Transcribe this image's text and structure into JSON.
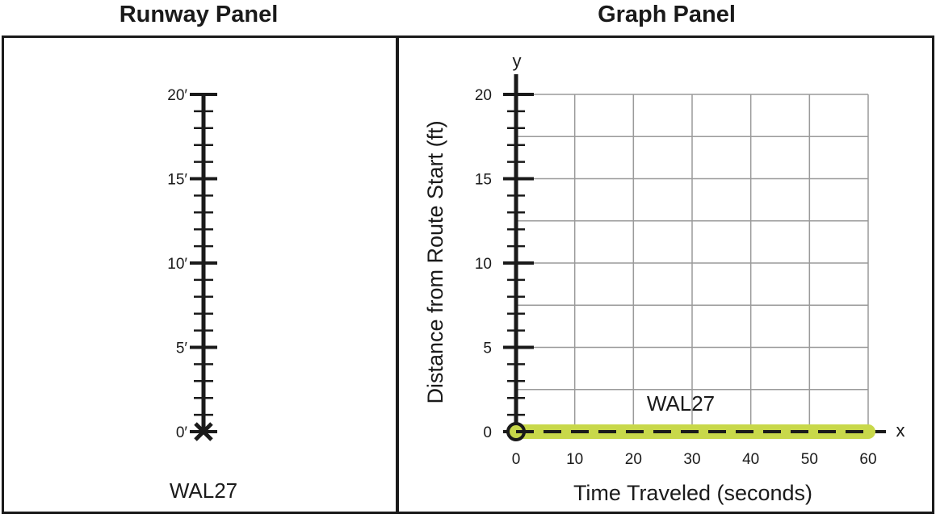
{
  "runway_panel": {
    "title": "Runway Panel",
    "scale_labels": [
      "0′",
      "5′",
      "10′",
      "15′",
      "20′"
    ],
    "scale_values": [
      0,
      5,
      10,
      15,
      20
    ],
    "marker_position": 0,
    "route_label": "WAL27"
  },
  "graph_panel": {
    "title": "Graph Panel"
  },
  "chart_data": {
    "type": "line",
    "title": "",
    "xlabel": "Time Traveled (seconds)",
    "ylabel": "Distance from Route Start (ft)",
    "x_axis_letter": "x",
    "y_axis_letter": "y",
    "xlim": [
      0,
      60
    ],
    "ylim": [
      0,
      20
    ],
    "x_ticks": [
      0,
      10,
      20,
      30,
      40,
      50,
      60
    ],
    "y_ticks": [
      0,
      5,
      10,
      15,
      20
    ],
    "grid": true,
    "series": [
      {
        "name": "WAL27",
        "x": [
          0,
          60
        ],
        "y": [
          0,
          0
        ],
        "color": "#c8d84a"
      }
    ],
    "start_point": {
      "x": 0,
      "y": 0
    }
  }
}
